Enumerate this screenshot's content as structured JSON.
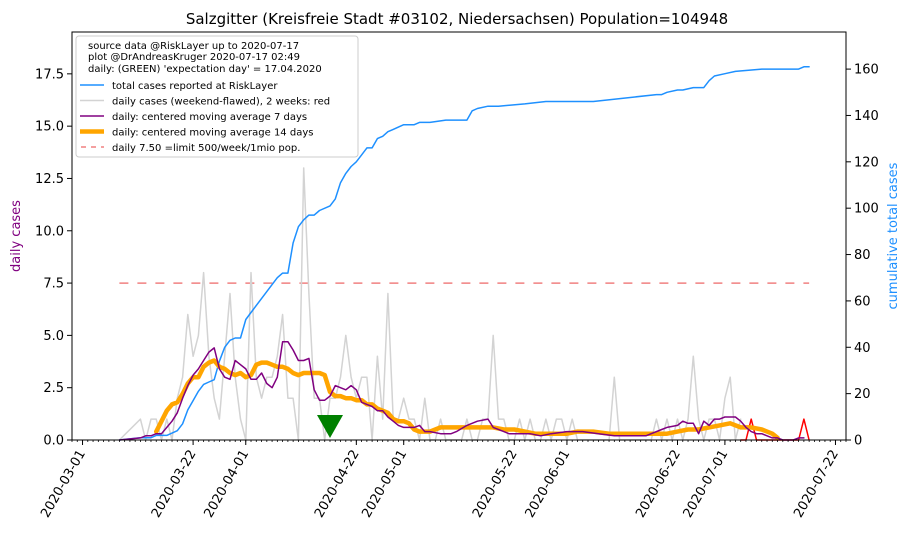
{
  "chart_data": {
    "type": "line",
    "title": "Salzgitter (Kreisfreie Stadt #03102, Niedersachsen) Population=104948",
    "ylabel_left": "daily cases",
    "ylabel_right": "cumulative total cases",
    "xlim": [
      "2020-02-28",
      "2020-07-24"
    ],
    "ylim_left": [
      0,
      19.5
    ],
    "ylim_right": [
      0,
      176
    ],
    "x_tick_labels": [
      "2020-03-01",
      "2020-03-22",
      "2020-04-01",
      "2020-04-22",
      "2020-05-01",
      "2020-05-22",
      "2020-06-01",
      "2020-06-22",
      "2020-07-01",
      "2020-07-22"
    ],
    "y_left_ticks": [
      "0.0",
      "2.5",
      "5.0",
      "7.5",
      "10.0",
      "12.5",
      "15.0",
      "17.5"
    ],
    "y_right_ticks": [
      "0",
      "20",
      "40",
      "60",
      "80",
      "100",
      "120",
      "140",
      "160"
    ],
    "info_lines": [
      "source data @RiskLayer up to 2020-07-17",
      "plot @DrAndreasKruger 2020-07-17 02:49",
      "daily: (GREEN) 'expectation day' = 17.04.2020"
    ],
    "legend_position": "top-left",
    "colors": {
      "total": "#1e90ff",
      "daily": "#d3d3d3",
      "daily_recent": "#ff0000",
      "ma7": "#800080",
      "ma14": "#ffa500",
      "limit": "#f08080",
      "expectation": "#008000",
      "ylabel_left": "#800080",
      "ylabel_right": "#1e90ff"
    },
    "legend": [
      {
        "key": "total",
        "label": "total cases reported at RiskLayer"
      },
      {
        "key": "daily",
        "label": "daily cases (weekend-flawed), 2 weeks: red"
      },
      {
        "key": "ma7",
        "label": "daily: centered moving average 7 days"
      },
      {
        "key": "ma14",
        "label": "daily: centered moving average 14 days"
      },
      {
        "key": "limit",
        "label": "daily 7.50 =limit 500/week/1mio pop."
      }
    ],
    "limit_value": 7.5,
    "limit_range": [
      "2020-03-08",
      "2020-07-17"
    ],
    "expectation_day": "2020-04-17",
    "series_total": {
      "name": "total cases reported at RiskLayer",
      "x": [
        "2020-03-08",
        "2020-03-12",
        "2020-03-14",
        "2020-03-15",
        "2020-03-17",
        "2020-03-19",
        "2020-03-20",
        "2020-03-21",
        "2020-03-22",
        "2020-03-23",
        "2020-03-24",
        "2020-03-25",
        "2020-03-26",
        "2020-03-27",
        "2020-03-28",
        "2020-03-29",
        "2020-03-30",
        "2020-03-31",
        "2020-04-01",
        "2020-04-02",
        "2020-04-05",
        "2020-04-07",
        "2020-04-08",
        "2020-04-09",
        "2020-04-10",
        "2020-04-11",
        "2020-04-12",
        "2020-04-13",
        "2020-04-14",
        "2020-04-15",
        "2020-04-17",
        "2020-04-18",
        "2020-04-19",
        "2020-04-20",
        "2020-04-21",
        "2020-04-22",
        "2020-04-23",
        "2020-04-24",
        "2020-04-25",
        "2020-04-26",
        "2020-04-27",
        "2020-04-28",
        "2020-04-29",
        "2020-05-01",
        "2020-05-03",
        "2020-05-04",
        "2020-05-06",
        "2020-05-09",
        "2020-05-13",
        "2020-05-14",
        "2020-05-15",
        "2020-05-17",
        "2020-05-19",
        "2020-05-24",
        "2020-05-28",
        "2020-06-06",
        "2020-06-18",
        "2020-06-19",
        "2020-06-20",
        "2020-06-22",
        "2020-06-23",
        "2020-06-25",
        "2020-06-27",
        "2020-06-28",
        "2020-06-29",
        "2020-07-01",
        "2020-07-03",
        "2020-07-08",
        "2020-07-15",
        "2020-07-16",
        "2020-07-17"
      ],
      "values": [
        0,
        1,
        1,
        2,
        2,
        4,
        7,
        13,
        17,
        21,
        24,
        25,
        26,
        34,
        40,
        43,
        44,
        44,
        52,
        55,
        64,
        70,
        72,
        72,
        85,
        92,
        95,
        97,
        97,
        99,
        101,
        104,
        111,
        115,
        118,
        120,
        123,
        126,
        126,
        130,
        131,
        133,
        134,
        136,
        136,
        137,
        137,
        138,
        138,
        142,
        143,
        144,
        144,
        145,
        146,
        146,
        149,
        149,
        150,
        151,
        151,
        152,
        152,
        155,
        157,
        158,
        159,
        160,
        160,
        161,
        161
      ]
    },
    "series_daily": {
      "name": "daily cases (weekend-flawed), 2 weeks: red",
      "x": [
        "2020-03-08",
        "2020-03-12",
        "2020-03-13",
        "2020-03-14",
        "2020-03-15",
        "2020-03-16",
        "2020-03-17",
        "2020-03-18",
        "2020-03-19",
        "2020-03-20",
        "2020-03-21",
        "2020-03-22",
        "2020-03-23",
        "2020-03-24",
        "2020-03-25",
        "2020-03-26",
        "2020-03-27",
        "2020-03-28",
        "2020-03-29",
        "2020-03-30",
        "2020-03-31",
        "2020-04-01",
        "2020-04-02",
        "2020-04-03",
        "2020-04-04",
        "2020-04-05",
        "2020-04-06",
        "2020-04-07",
        "2020-04-08",
        "2020-04-09",
        "2020-04-10",
        "2020-04-11",
        "2020-04-12",
        "2020-04-13",
        "2020-04-14",
        "2020-04-15",
        "2020-04-16",
        "2020-04-17",
        "2020-04-18",
        "2020-04-19",
        "2020-04-20",
        "2020-04-21",
        "2020-04-22",
        "2020-04-23",
        "2020-04-24",
        "2020-04-25",
        "2020-04-26",
        "2020-04-27",
        "2020-04-28",
        "2020-04-29",
        "2020-04-30",
        "2020-05-01",
        "2020-05-02",
        "2020-05-03",
        "2020-05-04",
        "2020-05-05",
        "2020-05-06",
        "2020-05-07",
        "2020-05-08",
        "2020-05-09",
        "2020-05-10",
        "2020-05-11",
        "2020-05-12",
        "2020-05-13",
        "2020-05-14",
        "2020-05-15",
        "2020-05-16",
        "2020-05-17",
        "2020-05-18",
        "2020-05-19",
        "2020-05-20",
        "2020-05-21",
        "2020-05-22",
        "2020-05-23",
        "2020-05-24",
        "2020-05-25",
        "2020-05-26",
        "2020-05-27",
        "2020-05-28",
        "2020-05-29",
        "2020-05-30",
        "2020-05-31",
        "2020-06-01",
        "2020-06-02",
        "2020-06-03",
        "2020-06-04",
        "2020-06-05",
        "2020-06-06",
        "2020-06-07",
        "2020-06-08",
        "2020-06-09",
        "2020-06-10",
        "2020-06-11",
        "2020-06-12",
        "2020-06-13",
        "2020-06-14",
        "2020-06-15",
        "2020-06-16",
        "2020-06-17",
        "2020-06-18",
        "2020-06-19",
        "2020-06-20",
        "2020-06-21",
        "2020-06-22",
        "2020-06-23",
        "2020-06-24",
        "2020-06-25",
        "2020-06-26",
        "2020-06-27",
        "2020-06-28",
        "2020-06-29",
        "2020-06-30",
        "2020-07-01",
        "2020-07-02",
        "2020-07-03",
        "2020-07-04"
      ],
      "values": [
        0,
        1,
        0,
        1,
        1,
        0,
        1,
        0,
        2,
        3,
        6,
        4,
        5,
        8,
        4,
        2,
        1,
        4,
        7,
        3,
        1,
        0,
        8,
        3,
        2,
        3,
        3,
        4,
        6,
        2,
        2,
        0,
        13,
        7,
        2,
        2,
        0,
        2,
        2,
        3,
        5,
        3,
        2,
        3,
        3,
        0,
        4,
        1,
        7,
        1,
        1,
        2,
        1,
        1,
        0,
        2,
        0,
        0,
        1,
        0,
        0,
        0,
        0,
        1,
        0,
        0,
        1,
        1,
        5,
        1,
        1,
        0,
        0,
        1,
        0,
        1,
        0,
        0,
        1,
        0,
        1,
        1,
        0,
        1,
        0,
        0,
        0,
        0,
        0,
        0,
        0,
        3,
        0,
        0,
        0,
        0,
        0,
        0,
        0,
        1,
        0,
        1,
        0,
        1,
        0,
        1,
        4,
        1,
        0,
        1,
        1,
        0,
        2,
        3,
        0,
        1
      ]
    },
    "series_daily_recent": {
      "name": "daily cases, last 2 weeks",
      "x": [
        "2020-07-04",
        "2020-07-05",
        "2020-07-06",
        "2020-07-07",
        "2020-07-08",
        "2020-07-09",
        "2020-07-10",
        "2020-07-11",
        "2020-07-12",
        "2020-07-13",
        "2020-07-14",
        "2020-07-15",
        "2020-07-16",
        "2020-07-17"
      ],
      "values": [
        0,
        0,
        1,
        0,
        0,
        0,
        0,
        0,
        0,
        0,
        0,
        0,
        1,
        0
      ]
    },
    "series_ma7": {
      "name": "daily: centered moving average 7 days",
      "x": [
        "2020-03-08",
        "2020-03-12",
        "2020-03-13",
        "2020-03-14",
        "2020-03-15",
        "2020-03-16",
        "2020-03-17",
        "2020-03-18",
        "2020-03-19",
        "2020-03-20",
        "2020-03-21",
        "2020-03-22",
        "2020-03-23",
        "2020-03-24",
        "2020-03-25",
        "2020-03-26",
        "2020-03-27",
        "2020-03-28",
        "2020-03-29",
        "2020-03-30",
        "2020-03-31",
        "2020-04-01",
        "2020-04-02",
        "2020-04-03",
        "2020-04-04",
        "2020-04-05",
        "2020-04-06",
        "2020-04-07",
        "2020-04-08",
        "2020-04-09",
        "2020-04-10",
        "2020-04-11",
        "2020-04-12",
        "2020-04-13",
        "2020-04-14",
        "2020-04-15",
        "2020-04-16",
        "2020-04-17",
        "2020-04-18",
        "2020-04-19",
        "2020-04-20",
        "2020-04-21",
        "2020-04-22",
        "2020-04-23",
        "2020-04-24",
        "2020-04-25",
        "2020-04-26",
        "2020-04-27",
        "2020-04-28",
        "2020-04-29",
        "2020-04-30",
        "2020-05-01",
        "2020-05-03",
        "2020-05-04",
        "2020-05-05",
        "2020-05-06",
        "2020-05-08",
        "2020-05-10",
        "2020-05-11",
        "2020-05-13",
        "2020-05-15",
        "2020-05-17",
        "2020-05-18",
        "2020-05-20",
        "2020-05-21",
        "2020-05-23",
        "2020-05-25",
        "2020-05-27",
        "2020-05-29",
        "2020-06-01",
        "2020-06-04",
        "2020-06-07",
        "2020-06-10",
        "2020-06-13",
        "2020-06-16",
        "2020-06-19",
        "2020-06-20",
        "2020-06-22",
        "2020-06-23",
        "2020-06-24",
        "2020-06-25",
        "2020-06-26",
        "2020-06-27",
        "2020-06-28",
        "2020-06-29",
        "2020-06-30",
        "2020-07-01",
        "2020-07-02",
        "2020-07-03",
        "2020-07-04",
        "2020-07-05",
        "2020-07-06",
        "2020-07-07",
        "2020-07-08",
        "2020-07-09",
        "2020-07-10",
        "2020-07-11",
        "2020-07-12",
        "2020-07-13",
        "2020-07-14",
        "2020-07-15",
        "2020-07-16"
      ],
      "values": [
        0,
        0.1,
        0.2,
        0.2,
        0.3,
        0.3,
        0.6,
        0.9,
        1.3,
        2.0,
        2.6,
        3.1,
        3.4,
        3.8,
        4.2,
        4.4,
        3.4,
        3.0,
        2.9,
        3.8,
        3.6,
        3.4,
        2.9,
        2.9,
        3.2,
        2.7,
        2.5,
        3.0,
        4.7,
        4.7,
        4.3,
        3.8,
        3.8,
        3.9,
        2.4,
        1.9,
        1.9,
        2.1,
        2.6,
        2.5,
        2.4,
        2.6,
        2.4,
        1.8,
        1.7,
        1.6,
        1.4,
        1.4,
        1.1,
        0.9,
        0.7,
        0.6,
        0.6,
        0.7,
        0.4,
        0.4,
        0.3,
        0.3,
        0.4,
        0.7,
        0.9,
        1.0,
        0.6,
        0.4,
        0.3,
        0.3,
        0.3,
        0.2,
        0.3,
        0.4,
        0.4,
        0.3,
        0.2,
        0.2,
        0.2,
        0.5,
        0.6,
        0.7,
        0.9,
        0.8,
        0.8,
        0.3,
        0.9,
        0.7,
        1.0,
        1.0,
        1.1,
        1.1,
        1.1,
        0.9,
        0.6,
        0.4,
        0.3,
        0.3,
        0.2,
        0.1,
        0.1,
        0.0,
        0.0,
        0.0,
        0.1,
        0.1
      ]
    },
    "series_ma14": {
      "name": "daily: centered moving average 14 days",
      "x": [
        "2020-03-15",
        "2020-03-16",
        "2020-03-17",
        "2020-03-18",
        "2020-03-19",
        "2020-03-20",
        "2020-03-21",
        "2020-03-22",
        "2020-03-23",
        "2020-03-24",
        "2020-03-25",
        "2020-03-26",
        "2020-03-27",
        "2020-03-28",
        "2020-03-29",
        "2020-03-30",
        "2020-03-31",
        "2020-04-01",
        "2020-04-02",
        "2020-04-03",
        "2020-04-04",
        "2020-04-05",
        "2020-04-06",
        "2020-04-07",
        "2020-04-08",
        "2020-04-09",
        "2020-04-10",
        "2020-04-11",
        "2020-04-12",
        "2020-04-13",
        "2020-04-14",
        "2020-04-15",
        "2020-04-16",
        "2020-04-17",
        "2020-04-18",
        "2020-04-19",
        "2020-04-20",
        "2020-04-21",
        "2020-04-22",
        "2020-04-23",
        "2020-04-24",
        "2020-04-25",
        "2020-04-26",
        "2020-04-27",
        "2020-04-28",
        "2020-04-29",
        "2020-04-30",
        "2020-05-01",
        "2020-05-02",
        "2020-05-03",
        "2020-05-04",
        "2020-05-05",
        "2020-05-06",
        "2020-05-08",
        "2020-05-10",
        "2020-05-12",
        "2020-05-14",
        "2020-05-16",
        "2020-05-18",
        "2020-05-20",
        "2020-05-22",
        "2020-05-24",
        "2020-05-26",
        "2020-05-28",
        "2020-05-30",
        "2020-06-01",
        "2020-06-03",
        "2020-06-06",
        "2020-06-09",
        "2020-06-12",
        "2020-06-15",
        "2020-06-18",
        "2020-06-20",
        "2020-06-22",
        "2020-06-24",
        "2020-06-26",
        "2020-06-28",
        "2020-06-30",
        "2020-07-02",
        "2020-07-04",
        "2020-07-06",
        "2020-07-08",
        "2020-07-09",
        "2020-07-10",
        "2020-07-11"
      ],
      "values": [
        0.4,
        0.9,
        1.4,
        1.7,
        1.8,
        2.2,
        2.7,
        3.0,
        3.0,
        3.5,
        3.7,
        3.8,
        3.5,
        3.4,
        3.2,
        3.1,
        3.2,
        3.0,
        3.1,
        3.6,
        3.7,
        3.7,
        3.6,
        3.5,
        3.5,
        3.4,
        3.2,
        3.1,
        3.2,
        3.2,
        3.2,
        3.2,
        3.1,
        2.3,
        2.1,
        2.1,
        2.0,
        2.0,
        1.9,
        1.9,
        1.7,
        1.7,
        1.5,
        1.4,
        1.3,
        1.0,
        0.9,
        0.9,
        0.8,
        0.5,
        0.4,
        0.4,
        0.4,
        0.6,
        0.6,
        0.6,
        0.6,
        0.6,
        0.6,
        0.5,
        0.5,
        0.4,
        0.3,
        0.3,
        0.3,
        0.3,
        0.4,
        0.4,
        0.3,
        0.3,
        0.3,
        0.3,
        0.3,
        0.4,
        0.5,
        0.5,
        0.6,
        0.7,
        0.8,
        0.6,
        0.6,
        0.5,
        0.4,
        0.3,
        0.1
      ]
    }
  }
}
